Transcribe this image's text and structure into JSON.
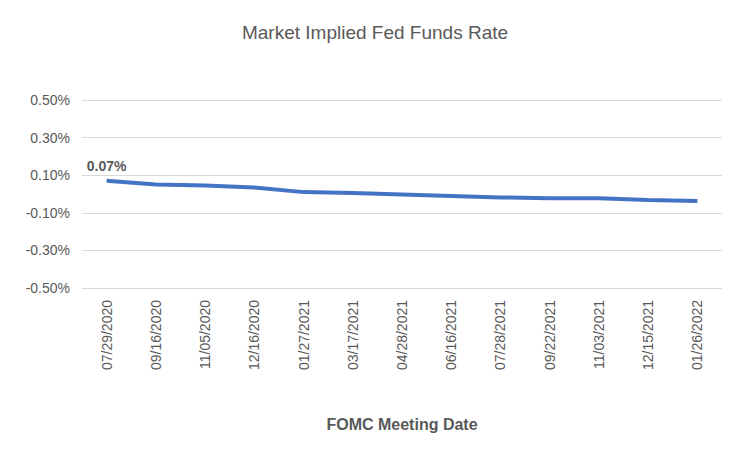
{
  "chart_data": {
    "type": "line",
    "title": "Market Implied Fed Funds Rate",
    "x_label": "FOMC Meeting Date",
    "categories": [
      "07/29/2020",
      "09/16/2020",
      "11/05/2020",
      "12/16/2020",
      "01/27/2021",
      "03/17/2021",
      "04/28/2021",
      "06/16/2021",
      "07/28/2021",
      "09/22/2021",
      "11/03/2021",
      "12/15/2021",
      "01/26/2022"
    ],
    "values": [
      0.07,
      0.05,
      0.045,
      0.035,
      0.01,
      0.005,
      -0.002,
      -0.01,
      -0.018,
      -0.022,
      -0.022,
      -0.032,
      -0.037
    ],
    "color": "#4472c4",
    "ylim": [
      -0.5,
      0.5
    ],
    "yticks": [
      {
        "value": -0.5,
        "label": "-0.50%"
      },
      {
        "value": -0.3,
        "label": "-0.30%"
      },
      {
        "value": -0.1,
        "label": "-0.10%"
      },
      {
        "value": 0.1,
        "label": "0.10%"
      },
      {
        "value": 0.3,
        "label": "0.30%"
      },
      {
        "value": 0.5,
        "label": "0.50%"
      }
    ],
    "grid": true,
    "annotations": [
      {
        "text": "0.07%",
        "x": "07/29/2020",
        "y": 0.07
      }
    ]
  }
}
